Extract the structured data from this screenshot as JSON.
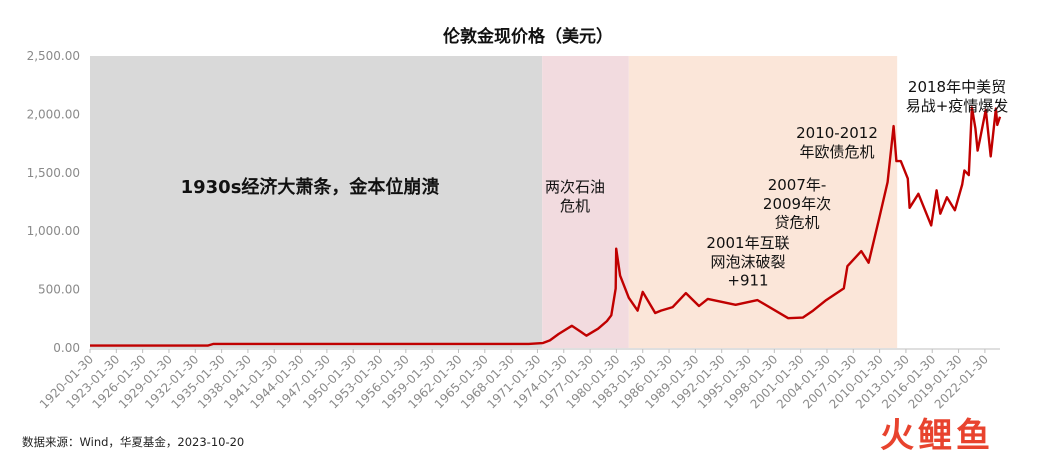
{
  "chart_data": {
    "type": "line",
    "title": "伦敦金现价格（美元）",
    "xlabel": "",
    "ylabel": "",
    "ylim": [
      0,
      2500
    ],
    "y_ticks": [
      0,
      500,
      1000,
      1500,
      2000,
      2500
    ],
    "y_tick_labels": [
      "0.00",
      "500.00",
      "1,000.00",
      "1,500.00",
      "2,000.00",
      "2,500.00"
    ],
    "x_range": [
      "1920-01-30",
      "2023-10-20"
    ],
    "x_tick_labels": [
      "1920-01-30",
      "1923-01-30",
      "1926-01-30",
      "1929-01-30",
      "1932-01-30",
      "1935-01-30",
      "1938-01-30",
      "1941-01-30",
      "1944-01-30",
      "1947-01-30",
      "1950-01-30",
      "1953-01-30",
      "1956-01-30",
      "1959-01-30",
      "1962-01-30",
      "1965-01-30",
      "1968-01-30",
      "1971-01-30",
      "1974-01-30",
      "1977-01-30",
      "1980-01-30",
      "1983-01-30",
      "1986-01-30",
      "1989-01-30",
      "1992-01-30",
      "1995-01-30",
      "1998-01-30",
      "2001-01-30",
      "2004-01-30",
      "2007-01-30",
      "2010-01-30",
      "2013-01-30",
      "2016-01-30",
      "2019-01-30",
      "2022-01-30"
    ],
    "grid": false,
    "legend": "none",
    "regions": [
      {
        "start": "1920-01-30",
        "end": "1971-08-15",
        "color": "#d9d9d9",
        "label": "1930s经济大萧条，金本位崩溃"
      },
      {
        "start": "1971-08-15",
        "end": "1981-06-30",
        "color": "#f2dbdf",
        "label": "两次石油危机"
      },
      {
        "start": "1981-06-30",
        "end": "2012-01-30",
        "color": "#fbe6d9",
        "label": ""
      }
    ],
    "annotations": [
      "2001年互联网泡沫破裂+911",
      "2007年-2009年次贷危机",
      "2010-2012年欧债危机",
      "2018年中美贸易战+疫情爆发"
    ],
    "series": [
      {
        "color": "#c00000",
        "x": [
          "1920-01-30",
          "1933-06-30",
          "1934-02-28",
          "1945-01-30",
          "1960-01-30",
          "1968-01-30",
          "1970-01-30",
          "1971-08-30",
          "1972-06-30",
          "1973-06-30",
          "1974-12-30",
          "1975-12-30",
          "1976-08-30",
          "1977-12-30",
          "1978-12-30",
          "1979-06-30",
          "1979-12-30",
          "1980-01-21",
          "1980-06-30",
          "1981-06-30",
          "1982-06-30",
          "1983-01-30",
          "1984-06-30",
          "1985-02-28",
          "1986-06-30",
          "1987-12-30",
          "1989-06-30",
          "1990-06-30",
          "1993-08-30",
          "1996-02-28",
          "1999-08-30",
          "2001-04-30",
          "2002-06-30",
          "2003-12-30",
          "2005-12-30",
          "2006-05-30",
          "2007-12-30",
          "2008-10-30",
          "2009-12-30",
          "2010-12-30",
          "2011-09-05",
          "2011-12-30",
          "2012-06-30",
          "2013-04-15",
          "2013-06-30",
          "2014-06-30",
          "2015-12-17",
          "2016-07-30",
          "2016-12-30",
          "2017-09-30",
          "2018-08-30",
          "2019-06-30",
          "2019-09-30",
          "2020-03-30",
          "2020-08-07",
          "2020-12-30",
          "2021-03-30",
          "2021-06-30",
          "2022-03-08",
          "2022-09-30",
          "2023-04-30",
          "2023-06-30",
          "2023-10-20"
        ],
        "values": [
          20.67,
          20.67,
          35,
          35,
          35,
          35,
          35,
          42,
          65,
          120,
          190,
          140,
          105,
          165,
          230,
          280,
          510,
          850,
          620,
          430,
          320,
          480,
          300,
          320,
          350,
          470,
          360,
          420,
          370,
          410,
          255,
          260,
          320,
          410,
          510,
          700,
          830,
          730,
          1100,
          1420,
          1900,
          1600,
          1600,
          1450,
          1200,
          1320,
          1050,
          1350,
          1150,
          1290,
          1180,
          1400,
          1520,
          1480,
          2060,
          1880,
          1690,
          1780,
          2040,
          1640,
          2050,
          1910,
          1980
        ]
      }
    ]
  },
  "page": {
    "source_note": "数据来源：Wind，华夏基金，2023-10-20",
    "watermark": "火鲤鱼"
  }
}
